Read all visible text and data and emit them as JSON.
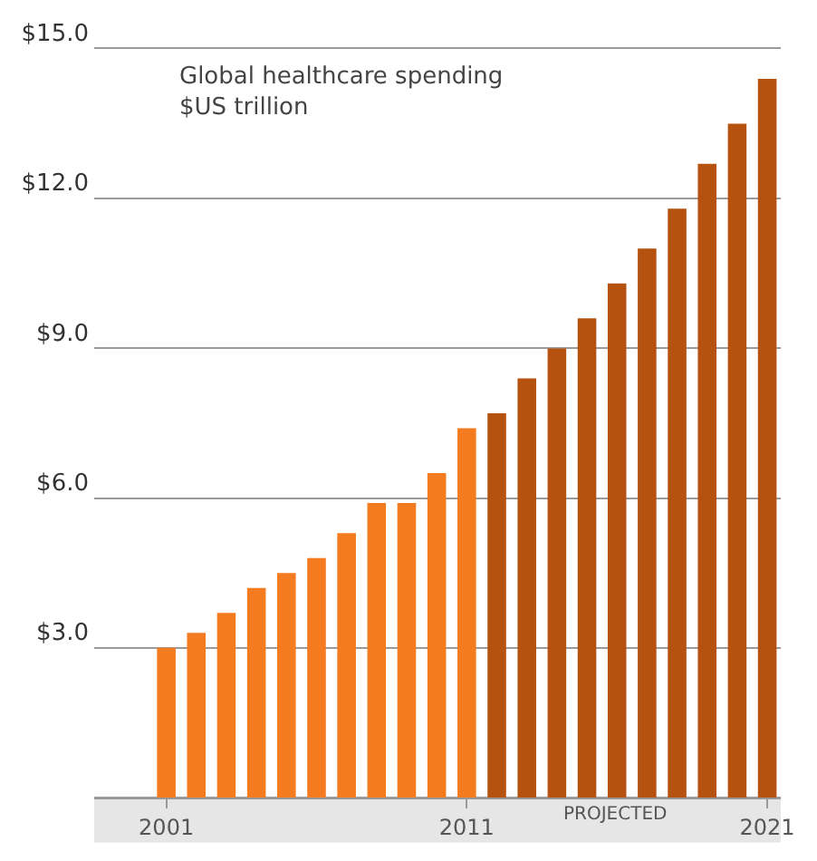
{
  "chart_data": {
    "type": "bar",
    "title": "Global healthcare spending\n$US trillion",
    "categories": [
      "2001",
      null,
      null,
      null,
      null,
      null,
      null,
      null,
      null,
      null,
      "2011",
      null,
      null,
      null,
      null,
      null,
      null,
      null,
      null,
      null,
      "2021"
    ],
    "values": [
      3.0,
      3.3,
      3.7,
      4.2,
      4.5,
      4.8,
      5.3,
      5.9,
      5.9,
      6.5,
      7.4,
      7.7,
      8.4,
      9.0,
      9.6,
      10.3,
      11.0,
      11.8,
      12.7,
      13.5,
      14.4
    ],
    "colors": [
      "#f47b20",
      "#f47b20",
      "#f47b20",
      "#f47b20",
      "#f47b20",
      "#f47b20",
      "#f47b20",
      "#f47b20",
      "#f47b20",
      "#f47b20",
      "#f47b20",
      "#b5520f",
      "#b5520f",
      "#b5520f",
      "#b5520f",
      "#b5520f",
      "#b5520f",
      "#b5520f",
      "#b5520f",
      "#b5520f",
      "#b5520f"
    ],
    "ylim": [
      0,
      15
    ],
    "yticks": [
      {
        "value": 0,
        "label": null
      },
      {
        "value": 3,
        "label": "$3.0"
      },
      {
        "value": 6,
        "label": "$6.0"
      },
      {
        "value": 9,
        "label": "$9.0"
      },
      {
        "value": 12,
        "label": "$12.0"
      },
      {
        "value": 15,
        "label": "$15.0"
      }
    ],
    "grid": "y",
    "annotations": [
      "PROJECTED"
    ]
  }
}
